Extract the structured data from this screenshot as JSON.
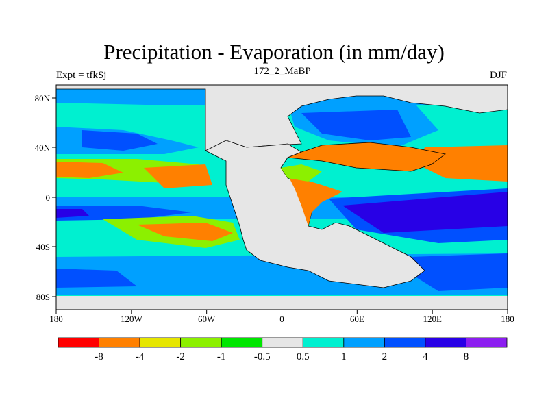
{
  "title": "Precipitation - Evaporation (in mm/day)",
  "subtitle": "172_2_MaBP",
  "left_label": "Expt = tfkSj",
  "right_label": "DJF",
  "map": {
    "lon_ticks": [
      "180",
      "120W",
      "60W",
      "0",
      "60E",
      "120E",
      "180"
    ],
    "lat_ticks": [
      "80N",
      "40N",
      "0",
      "40S",
      "80S"
    ]
  },
  "colorbar": {
    "colors": [
      "#ff0000",
      "#ff8000",
      "#e6e600",
      "#8cf000",
      "#00e600",
      "#e6e6e6",
      "#00f0d0",
      "#00a0ff",
      "#0050ff",
      "#2800e6",
      "#8c1ef0"
    ],
    "labels": [
      "-8",
      "-4",
      "-2",
      "-1",
      "-0.5",
      "0.5",
      "1",
      "2",
      "4",
      "8"
    ]
  },
  "colors": {
    "land": "#e6e6e6",
    "ocean_default": "#00f0d0"
  }
}
